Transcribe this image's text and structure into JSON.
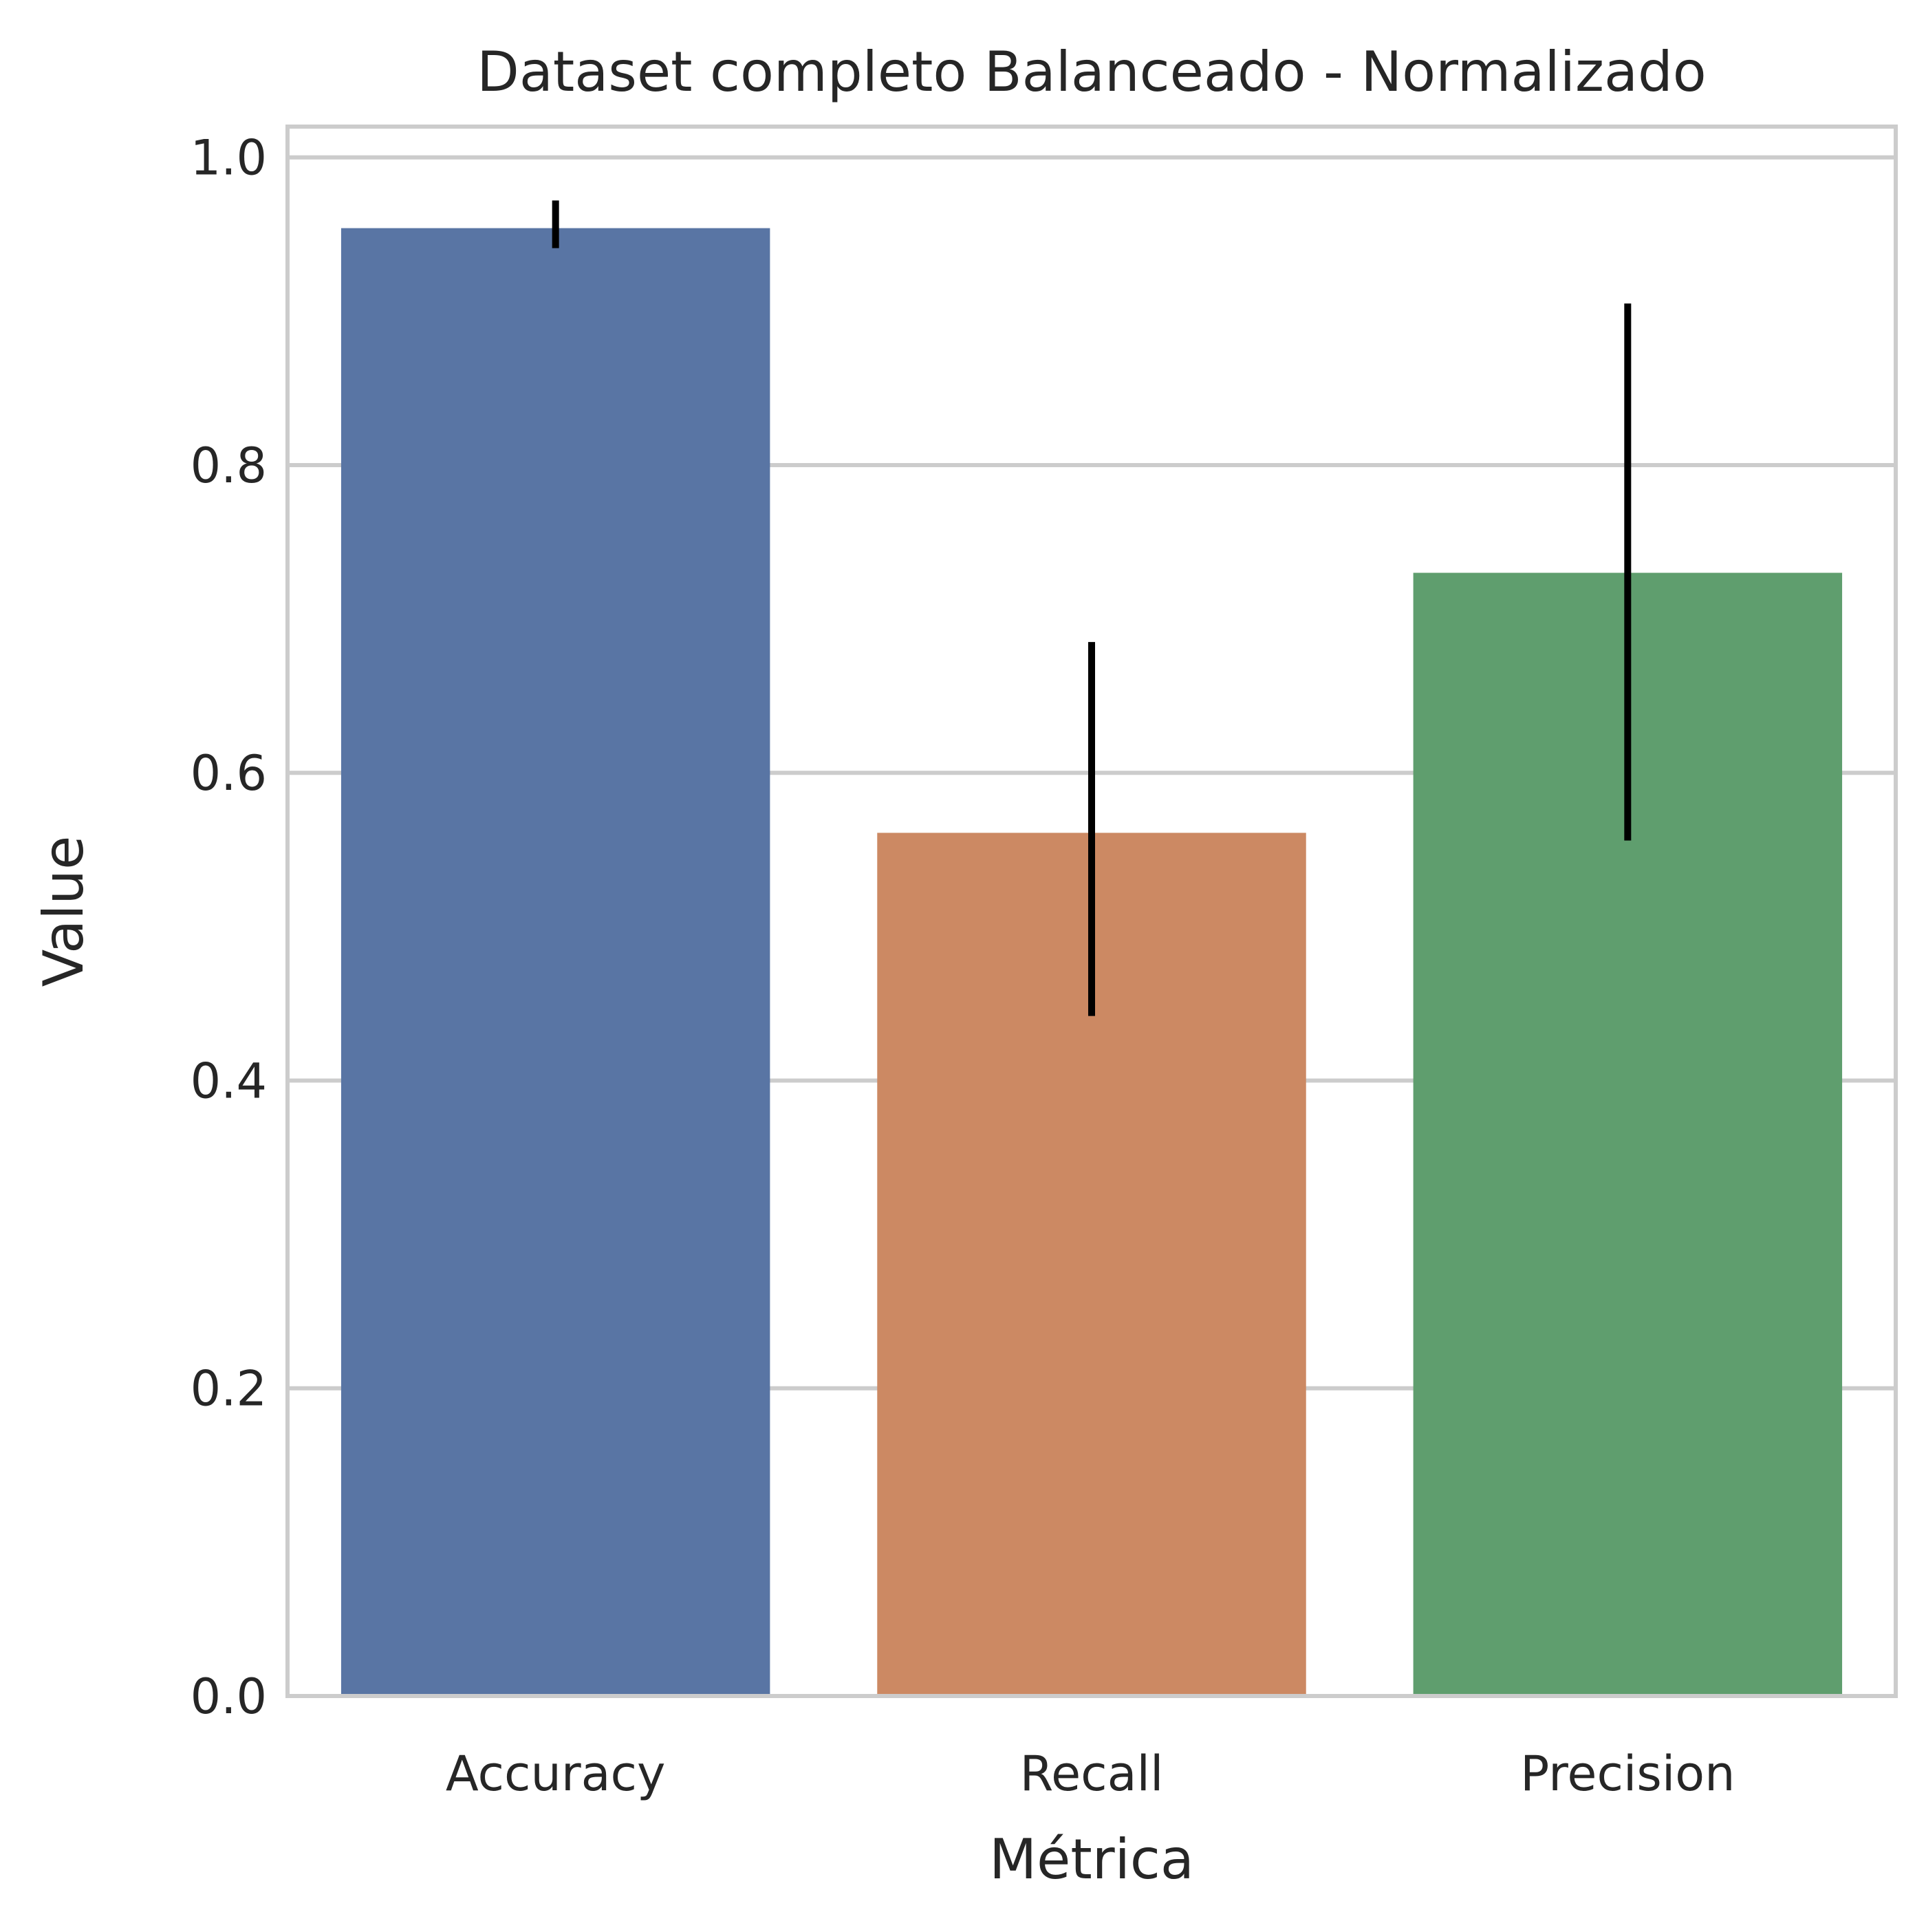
{
  "chart_data": {
    "type": "bar",
    "title": "Dataset completo Balanceado - Normalizado",
    "xlabel": "Métrica",
    "ylabel": "Value",
    "categories": [
      "Accuracy",
      "Recall",
      "Precision"
    ],
    "values": [
      0.954,
      0.561,
      0.73
    ],
    "error_low": [
      0.941,
      0.442,
      0.556
    ],
    "error_high": [
      0.972,
      0.685,
      0.905
    ],
    "ylim": [
      0,
      1.02
    ],
    "yticks": [
      0.0,
      0.2,
      0.4,
      0.6,
      0.8,
      1.0
    ],
    "ytick_labels": [
      "0.0",
      "0.2",
      "0.4",
      "0.6",
      "0.8",
      "1.0"
    ],
    "grid": "horizontal",
    "legend": "none",
    "colors": [
      "#5975a4",
      "#cc8963",
      "#5f9e6e"
    ],
    "errorbar_color": "#000000",
    "grid_color": "#cccccc",
    "frame_color": "#cccccc"
  }
}
